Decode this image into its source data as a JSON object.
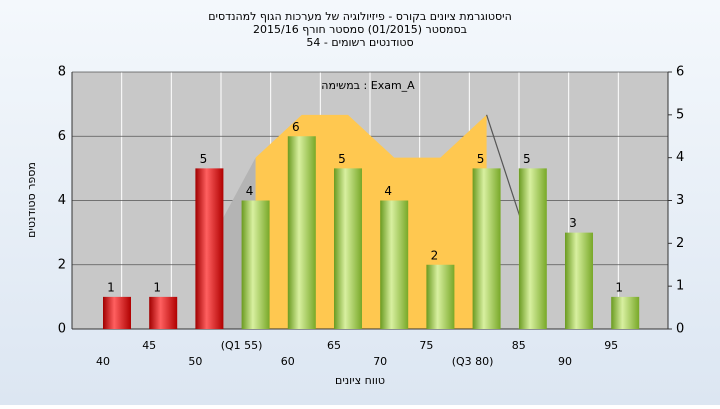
{
  "chart_data": {
    "type": "bar",
    "title": [
      "היסטוגרמת ציונים בקורס - פיזיולוגיה של מערכות הגוף למהנדסים",
      "בסמסטר (01/2015) סמסטר חורף 2015/16",
      "54 - סטודנטים רשומים"
    ],
    "annotation": "במשימה : Exam_A",
    "xlabel": "טווח ציונים",
    "ylabel": "מספר סטודנטים",
    "categories": [
      "40",
      "45",
      "50",
      "(Q1 55)",
      "60",
      "65",
      "70",
      "75",
      "(Q3 80)",
      "85",
      "90",
      "95"
    ],
    "values": [
      1,
      1,
      5,
      4,
      6,
      5,
      4,
      2,
      5,
      5,
      3,
      1
    ],
    "colors": [
      "red",
      "red",
      "red",
      "green",
      "green",
      "green",
      "green",
      "green",
      "green",
      "green",
      "green",
      "green"
    ],
    "ylim": [
      0,
      8
    ],
    "yticks": [
      0,
      2,
      4,
      6,
      8
    ],
    "y2lim": [
      0,
      6
    ],
    "y2ticks": [
      0,
      1,
      2,
      3,
      4,
      5,
      6
    ],
    "overlays": [
      {
        "type": "area",
        "axis": "y2",
        "color": "#b4b4b4",
        "values": [
          null,
          null,
          2,
          4,
          null,
          null,
          null,
          null,
          null,
          null,
          null,
          null
        ]
      },
      {
        "type": "area",
        "axis": "y2",
        "color": "#ffc850",
        "values": [
          null,
          null,
          null,
          4,
          5,
          5,
          4,
          4,
          5,
          null,
          null,
          null
        ]
      },
      {
        "type": "line",
        "axis": "y2",
        "color": "#555555",
        "values": [
          null,
          null,
          null,
          null,
          null,
          null,
          null,
          null,
          5,
          1.7,
          null,
          null
        ]
      }
    ]
  }
}
